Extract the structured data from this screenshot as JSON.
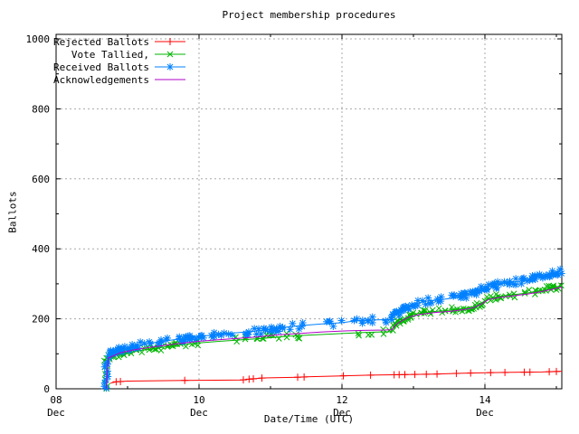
{
  "title": "Project membership procedures",
  "axes": {
    "x_title": "Date/Time (UTC)",
    "y_title": "Ballots"
  },
  "chart_data": {
    "type": "line",
    "title": "Project membership procedures",
    "xlabel": "Date/Time (UTC)",
    "ylabel": "Ballots",
    "ylim": [
      0,
      1000
    ],
    "y_major_ticks": [
      0,
      200,
      400,
      600,
      800,
      1000
    ],
    "y_minor_step": 100,
    "x_range_days": [
      0,
      7.076
    ],
    "x_major_ticks": [
      {
        "day": 0,
        "label": "08",
        "sublabel": "Dec"
      },
      {
        "day": 2,
        "label": "10",
        "sublabel": "Dec"
      },
      {
        "day": 4,
        "label": "12",
        "sublabel": "Dec"
      },
      {
        "day": 6,
        "label": "14",
        "sublabel": "Dec"
      }
    ],
    "x_minor_tick_days": [
      1,
      3,
      5,
      7
    ],
    "grid": {
      "enabled": true,
      "color": "#a8a8a8",
      "style": "dotted",
      "vertical_at_days": [
        2,
        4,
        6
      ],
      "horizontal_at_values": [
        200,
        400,
        600,
        800,
        1000
      ]
    },
    "legend_position": "top-left-inside",
    "series": [
      {
        "name": "Rejected Ballots",
        "slug": "rejected-ballots",
        "color": "#ff0000",
        "marker": "plus",
        "marker_mode": "listed",
        "points": [
          [
            0.76,
            16
          ],
          [
            0.84,
            20
          ],
          [
            1.0,
            22
          ],
          [
            1.8,
            24
          ],
          [
            2.6,
            25
          ],
          [
            2.72,
            28
          ],
          [
            2.9,
            31
          ],
          [
            3.38,
            33
          ],
          [
            3.5,
            34
          ],
          [
            4.0,
            37
          ],
          [
            4.4,
            39
          ],
          [
            4.72,
            40
          ],
          [
            5.0,
            41
          ],
          [
            5.3,
            42
          ],
          [
            5.6,
            44
          ],
          [
            6.0,
            46
          ],
          [
            6.4,
            47
          ],
          [
            6.8,
            48
          ],
          [
            7.076,
            50
          ]
        ],
        "marker_days": [
          0.84,
          0.9,
          1.8,
          2.62,
          2.7,
          2.76,
          2.88,
          3.38,
          3.47,
          4.02,
          4.4,
          4.73,
          4.8,
          4.88,
          5.02,
          5.18,
          5.33,
          5.6,
          5.8,
          6.08,
          6.28,
          6.55,
          6.63,
          6.9,
          7.0
        ]
      },
      {
        "name": "Vote Tallied,",
        "slug": "vote-tallied",
        "color": "#00b400",
        "marker": "cross",
        "marker_mode": "dense",
        "points": [
          [
            0.7,
            0
          ],
          [
            0.72,
            80
          ],
          [
            0.78,
            93
          ],
          [
            0.9,
            100
          ],
          [
            1.0,
            104
          ],
          [
            1.2,
            110
          ],
          [
            1.4,
            116
          ],
          [
            1.6,
            122
          ],
          [
            1.8,
            127
          ],
          [
            2.0,
            131
          ],
          [
            2.3,
            136
          ],
          [
            2.6,
            140
          ],
          [
            2.9,
            144
          ],
          [
            3.1,
            148
          ],
          [
            3.3,
            151
          ],
          [
            3.5,
            153
          ],
          [
            3.7,
            155
          ],
          [
            3.9,
            157
          ],
          [
            4.1,
            159
          ],
          [
            4.3,
            161
          ],
          [
            4.5,
            162
          ],
          [
            4.68,
            163
          ],
          [
            4.72,
            175
          ],
          [
            4.8,
            192
          ],
          [
            4.9,
            203
          ],
          [
            5.0,
            213
          ],
          [
            5.15,
            218
          ],
          [
            5.3,
            221
          ],
          [
            5.5,
            224
          ],
          [
            5.7,
            229
          ],
          [
            5.85,
            235
          ],
          [
            5.95,
            245
          ],
          [
            6.05,
            258
          ],
          [
            6.2,
            264
          ],
          [
            6.4,
            269
          ],
          [
            6.6,
            274
          ],
          [
            6.8,
            281
          ],
          [
            6.95,
            288
          ],
          [
            7.076,
            295
          ]
        ]
      },
      {
        "name": "Received Ballots",
        "slug": "received-ballots",
        "color": "#0080ff",
        "marker": "star",
        "marker_mode": "dense",
        "points": [
          [
            0.7,
            0
          ],
          [
            0.71,
            70
          ],
          [
            0.73,
            95
          ],
          [
            0.78,
            103
          ],
          [
            0.85,
            109
          ],
          [
            0.95,
            114
          ],
          [
            1.1,
            121
          ],
          [
            1.25,
            128
          ],
          [
            1.4,
            133
          ],
          [
            1.6,
            139
          ],
          [
            1.8,
            144
          ],
          [
            2.0,
            149
          ],
          [
            2.2,
            154
          ],
          [
            2.45,
            159
          ],
          [
            2.7,
            163
          ],
          [
            2.9,
            167
          ],
          [
            3.05,
            171
          ],
          [
            3.2,
            176
          ],
          [
            3.35,
            179
          ],
          [
            3.5,
            182
          ],
          [
            3.7,
            185
          ],
          [
            3.85,
            187
          ],
          [
            4.0,
            189
          ],
          [
            4.15,
            193
          ],
          [
            4.3,
            196
          ],
          [
            4.5,
            197
          ],
          [
            4.68,
            198
          ],
          [
            4.72,
            208
          ],
          [
            4.8,
            220
          ],
          [
            4.9,
            231
          ],
          [
            5.0,
            240
          ],
          [
            5.1,
            247
          ],
          [
            5.2,
            251
          ],
          [
            5.35,
            254
          ],
          [
            5.5,
            258
          ],
          [
            5.65,
            263
          ],
          [
            5.8,
            270
          ],
          [
            5.9,
            278
          ],
          [
            6.0,
            290
          ],
          [
            6.15,
            297
          ],
          [
            6.3,
            302
          ],
          [
            6.5,
            308
          ],
          [
            6.65,
            314
          ],
          [
            6.8,
            322
          ],
          [
            6.9,
            328
          ],
          [
            7.0,
            334
          ],
          [
            7.076,
            340
          ]
        ]
      },
      {
        "name": "Acknowledgements",
        "slug": "acknowledgements",
        "color": "#b000c8",
        "marker": "none",
        "marker_mode": "none",
        "points": [
          [
            0.7,
            0
          ],
          [
            0.73,
            88
          ],
          [
            0.9,
            103
          ],
          [
            1.1,
            112
          ],
          [
            1.4,
            121
          ],
          [
            1.7,
            129
          ],
          [
            2.0,
            136
          ],
          [
            2.4,
            142
          ],
          [
            2.8,
            148
          ],
          [
            3.1,
            154
          ],
          [
            3.4,
            158
          ],
          [
            3.7,
            162
          ],
          [
            4.0,
            165
          ],
          [
            4.3,
            167
          ],
          [
            4.6,
            168
          ],
          [
            4.7,
            169
          ],
          [
            4.75,
            183
          ],
          [
            4.85,
            196
          ],
          [
            4.95,
            206
          ],
          [
            5.1,
            213
          ],
          [
            5.3,
            218
          ],
          [
            5.5,
            221
          ],
          [
            5.7,
            226
          ],
          [
            5.85,
            232
          ],
          [
            5.95,
            242
          ],
          [
            6.05,
            255
          ],
          [
            6.2,
            261
          ],
          [
            6.4,
            266
          ],
          [
            6.6,
            271
          ],
          [
            6.8,
            278
          ],
          [
            6.95,
            285
          ],
          [
            7.076,
            291
          ]
        ]
      }
    ]
  }
}
